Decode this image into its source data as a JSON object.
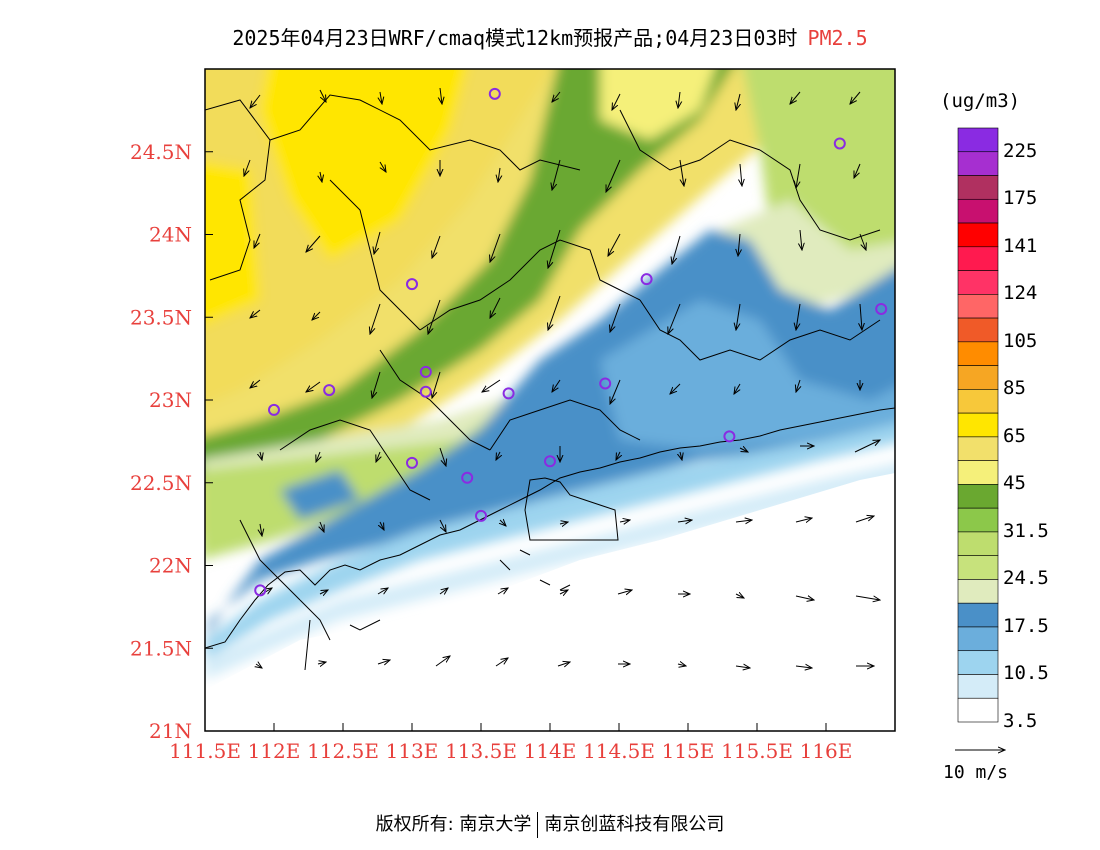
{
  "title": {
    "text": "2025年04月23日WRF/cmaq模式12km预报产品;04月23日03时",
    "pollutant": "PM2.5",
    "pollutant_color": "#e8403c"
  },
  "map": {
    "lon_labels": [
      "111.5E",
      "112E",
      "112.5E",
      "113E",
      "113.5E",
      "114E",
      "114.5E",
      "115E",
      "115.5E",
      "116E"
    ],
    "lat_labels": [
      "24.5N",
      "24N",
      "23.5N",
      "23N",
      "22.5N",
      "22N",
      "21.5N",
      "21N"
    ],
    "label_color": "#e8403c",
    "stations": [
      {
        "lon": 113.6,
        "lat": 24.85
      },
      {
        "lon": 116.1,
        "lat": 24.55
      },
      {
        "lon": 113.0,
        "lat": 23.7
      },
      {
        "lon": 114.7,
        "lat": 23.73
      },
      {
        "lon": 116.4,
        "lat": 23.55
      },
      {
        "lon": 113.1,
        "lat": 23.17
      },
      {
        "lon": 113.1,
        "lat": 23.05
      },
      {
        "lon": 112.4,
        "lat": 23.06
      },
      {
        "lon": 112.0,
        "lat": 22.94
      },
      {
        "lon": 113.7,
        "lat": 23.04
      },
      {
        "lon": 114.4,
        "lat": 23.1
      },
      {
        "lon": 113.0,
        "lat": 22.62
      },
      {
        "lon": 113.4,
        "lat": 22.53
      },
      {
        "lon": 114.0,
        "lat": 22.63
      },
      {
        "lon": 113.5,
        "lat": 22.3
      },
      {
        "lon": 115.3,
        "lat": 22.78
      },
      {
        "lon": 111.9,
        "lat": 21.85
      }
    ]
  },
  "legend": {
    "unit": "(ug/m3)",
    "colors": [
      "#8a2be2",
      "#a62fd0",
      "#b03060",
      "#c8106f",
      "#ff0000",
      "#ff1a4f",
      "#ff3366",
      "#ff6666",
      "#f05a28",
      "#ff8c00",
      "#f6a623",
      "#f7c83a",
      "#ffe600",
      "#f2e06b",
      "#f5f07a",
      "#6aa830",
      "#8cc84a",
      "#bedd6e",
      "#c7e27c",
      "#e0ebbe",
      "#4a90c8",
      "#6baedc",
      "#9dd4ef",
      "#d4ecf8",
      "#ffffff"
    ],
    "labels": [
      "225",
      "175",
      "141",
      "124",
      "105",
      "85",
      "65",
      "45",
      "31.5",
      "24.5",
      "17.5",
      "10.5",
      "3.5"
    ]
  },
  "wind_ref": {
    "label": "10 m/s"
  },
  "footer": {
    "left": "版权所有: 南京大学",
    "right": "南京创蓝科技有限公司"
  }
}
